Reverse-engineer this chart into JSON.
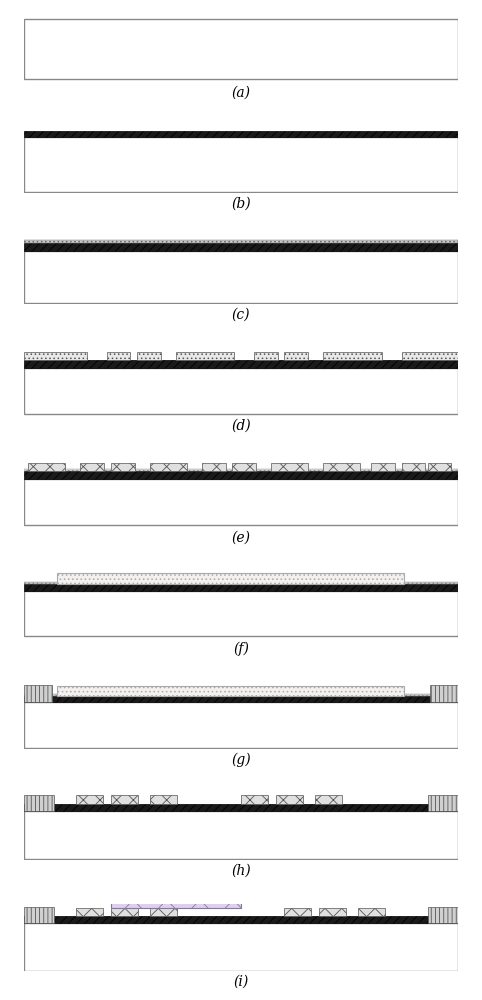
{
  "panels": [
    "(a)",
    "(b)",
    "(c)",
    "(d)",
    "(e)",
    "(f)",
    "(g)",
    "(h)",
    "(i)"
  ],
  "fig_width": 4.82,
  "fig_height": 10.0,
  "bg_color": "#ffffff",
  "label_fontsize": 10,
  "substrate_color": "#ffffff",
  "substrate_edge": "#888888",
  "hatch_diag": "////",
  "hatch_dots": "....",
  "hatch_cross": "xx",
  "hatch_vert": "||||",
  "hatch_wave": "/\\/\\",
  "black_layer_color": "#1a1a1a",
  "dots_block_color": "#e8e8e8",
  "cross_block_color": "#e0e0e0",
  "vert_block_color": "#d0d0d0",
  "pvdf_color": "#ddd0ee",
  "dotted_film_color": "#f5f0f0"
}
